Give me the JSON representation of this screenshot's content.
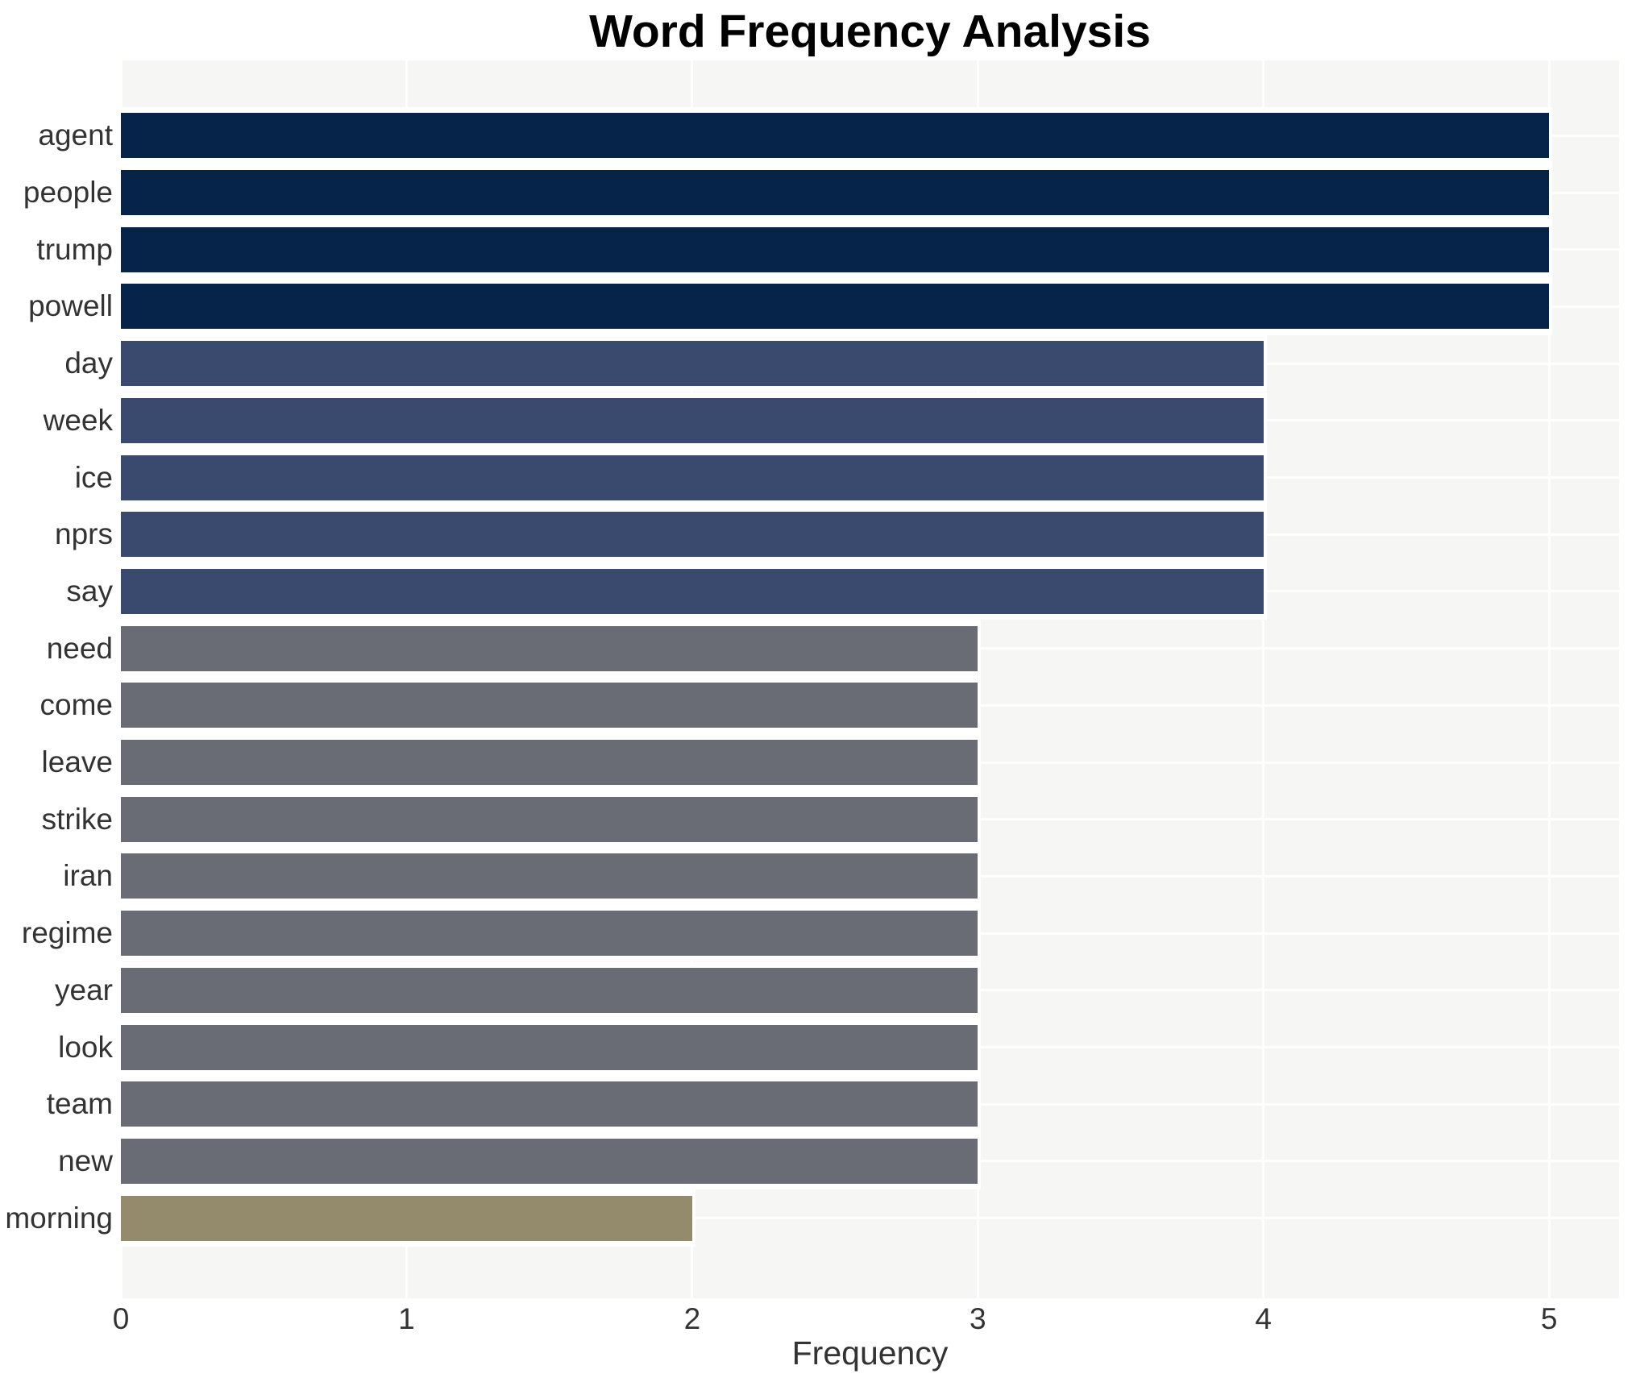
{
  "chart_data": {
    "type": "bar",
    "orientation": "horizontal",
    "title": "Word Frequency Analysis",
    "xlabel": "Frequency",
    "ylabel": "",
    "categories": [
      "agent",
      "people",
      "trump",
      "powell",
      "day",
      "week",
      "ice",
      "nprs",
      "say",
      "need",
      "come",
      "leave",
      "strike",
      "iran",
      "regime",
      "year",
      "look",
      "team",
      "new",
      "morning"
    ],
    "values": [
      5,
      5,
      5,
      5,
      4,
      4,
      4,
      4,
      4,
      3,
      3,
      3,
      3,
      3,
      3,
      3,
      3,
      3,
      3,
      2
    ],
    "bar_colors": [
      "#062349",
      "#062349",
      "#062349",
      "#062349",
      "#3a4a6e",
      "#3a4a6e",
      "#3a4a6e",
      "#3a4a6e",
      "#3a4a6e",
      "#696c74",
      "#696c74",
      "#696c74",
      "#696c74",
      "#696c74",
      "#696c74",
      "#696c74",
      "#696c74",
      "#696c74",
      "#696c74",
      "#948a6c"
    ],
    "xticks": [
      "0",
      "1",
      "2",
      "3",
      "4",
      "5"
    ],
    "xlim": [
      0,
      5.245
    ],
    "grid": true,
    "grid_color": "#ffffff",
    "plot_bg": "#f6f6f4",
    "bar_edge_color": "#ffffff",
    "text_color": "#333333",
    "title_color": "#000000"
  }
}
